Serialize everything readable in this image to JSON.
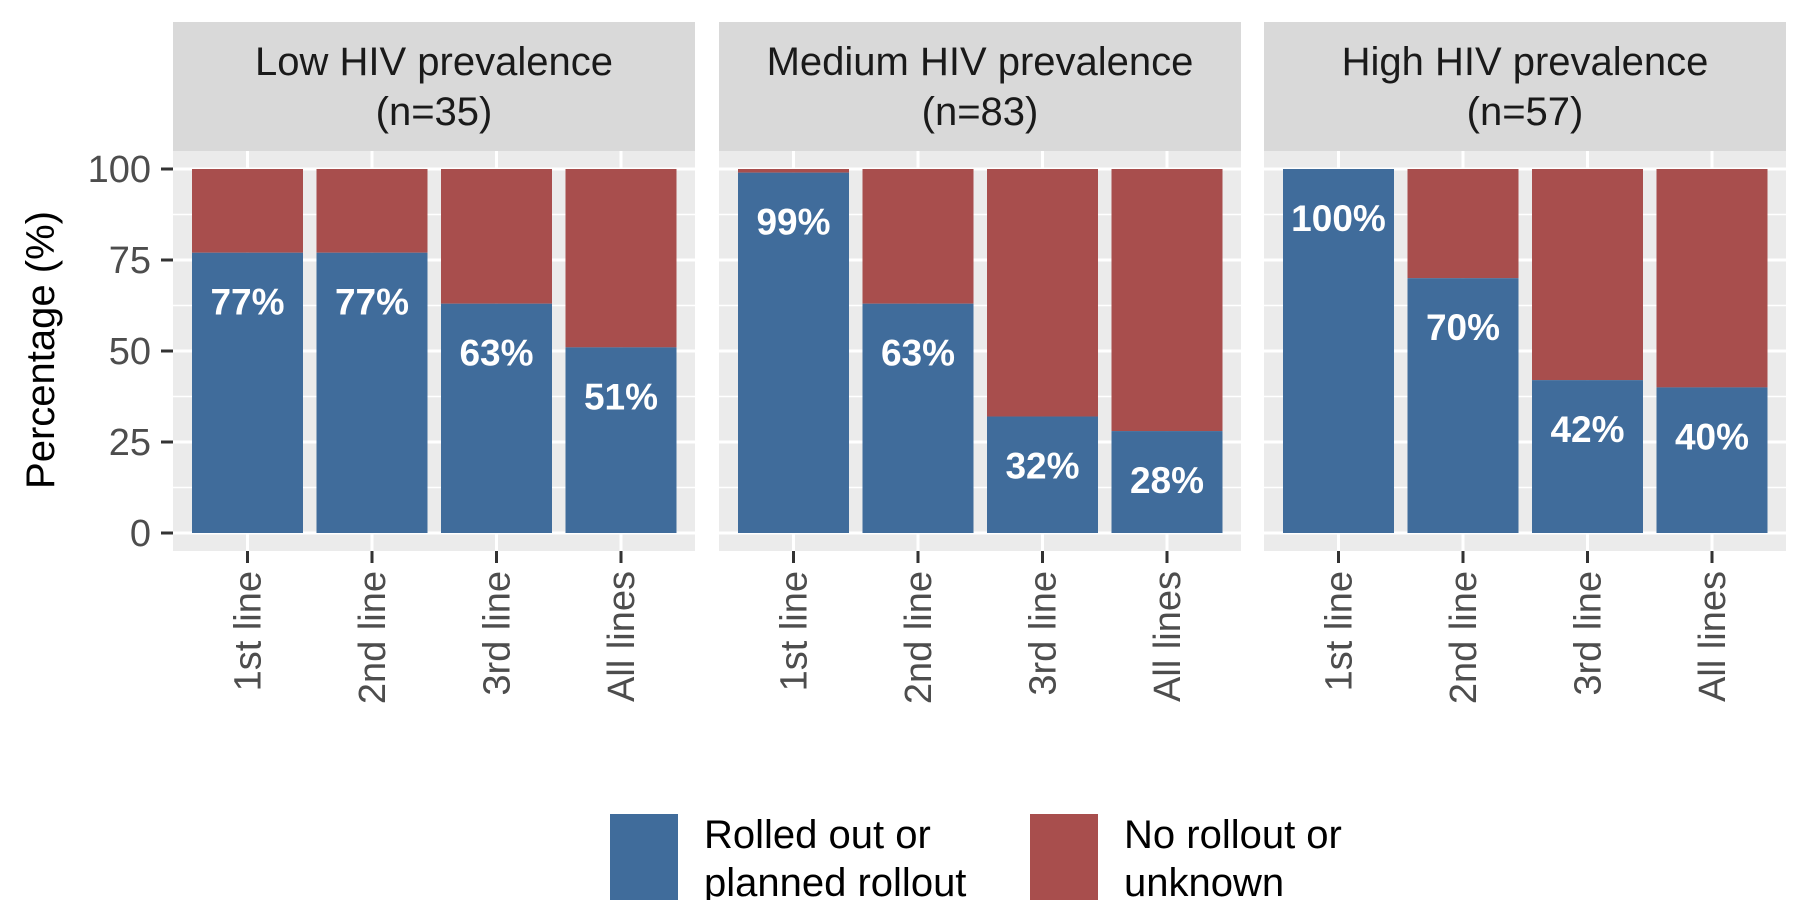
{
  "chart_data": {
    "type": "bar",
    "stacked": true,
    "ylabel": "Percentage (%)",
    "xlabel": "",
    "ylim": [
      0,
      100
    ],
    "yticks": [
      0,
      25,
      50,
      75,
      100
    ],
    "grid": true,
    "legend_position": "bottom",
    "categories": [
      "1st line",
      "2nd line",
      "3rd line",
      "All lines"
    ],
    "series": [
      {
        "name": "Rolled out or planned rollout",
        "color": "#406c9b"
      },
      {
        "name": "No rollout or unknown",
        "color": "#a84e4d"
      }
    ],
    "legend": [
      {
        "lines": [
          "Rolled out or",
          "planned rollout"
        ],
        "color": "#406c9b"
      },
      {
        "lines": [
          "No rollout or",
          "unknown"
        ],
        "color": "#a84e4d"
      }
    ],
    "panels": [
      {
        "title": [
          "Low HIV prevalence",
          "(n=35)"
        ],
        "values": [
          77,
          77,
          63,
          51
        ],
        "labels": [
          "77%",
          "77%",
          "63%",
          "51%"
        ]
      },
      {
        "title": [
          "Medium HIV prevalence",
          "(n=83)"
        ],
        "values": [
          99,
          63,
          32,
          28
        ],
        "labels": [
          "99%",
          "63%",
          "32%",
          "28%"
        ]
      },
      {
        "title": [
          "High HIV prevalence",
          "(n=57)"
        ],
        "values": [
          100,
          70,
          42,
          40
        ],
        "labels": [
          "100%",
          "70%",
          "42%",
          "40%"
        ]
      }
    ]
  }
}
